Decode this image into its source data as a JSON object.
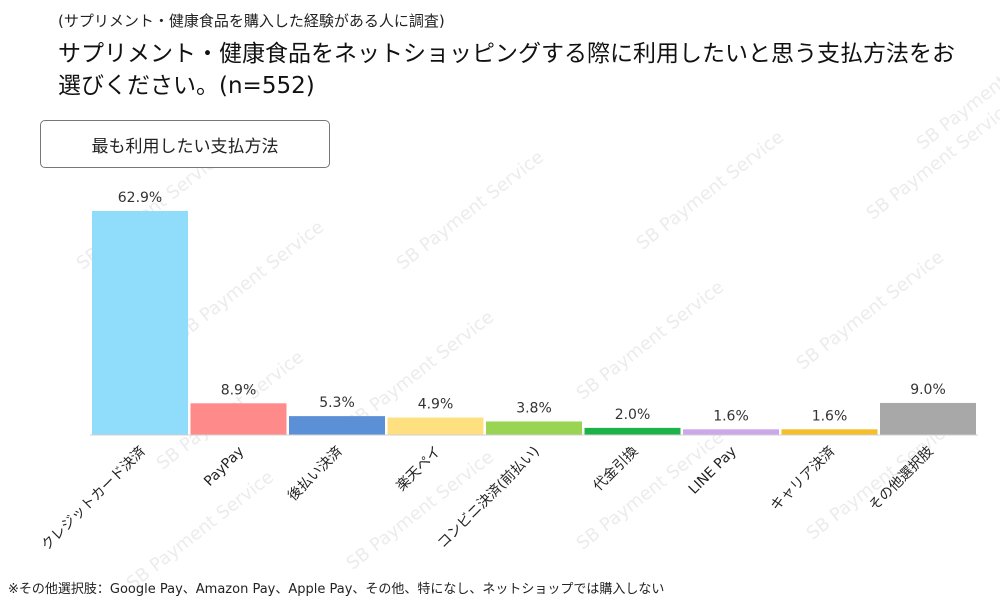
{
  "header": {
    "subtitle": "(サプリメント・健康食品を購入した経験がある人に調査)",
    "title": "サプリメント・健康食品をネットショッピングする際に利用したいと思う支払方法をお選びください。(n=552)"
  },
  "panel_label": "最も利用したい支払方法",
  "watermark_text": "SB Payment Service",
  "footnote": "※その他選択肢：Google Pay、Amazon Pay、Apple Pay、その他、特になし、ネットショップでは購入しない",
  "chart_data": {
    "type": "bar",
    "categories": [
      "クレジットカード決済",
      "PayPay",
      "後払い決済",
      "楽天ペイ",
      "コンビニ決済(前払い)",
      "代金引換",
      "LINE Pay",
      "キャリア決済",
      "その他選択肢"
    ],
    "values": [
      62.9,
      8.9,
      5.3,
      4.9,
      3.8,
      2.0,
      1.6,
      1.6,
      9.0
    ],
    "value_labels": [
      "62.9%",
      "8.9%",
      "5.3%",
      "4.9%",
      "3.8%",
      "2.0%",
      "1.6%",
      "1.6%",
      "9.0%"
    ],
    "colors": [
      "#8fdcfb",
      "#ff8a8a",
      "#5b8fd6",
      "#ffe080",
      "#99d452",
      "#1bb24a",
      "#cda8e8",
      "#f7be2b",
      "#a8a8a8"
    ],
    "ylim": [
      0,
      62.9
    ],
    "grid": false,
    "legend": "none"
  }
}
